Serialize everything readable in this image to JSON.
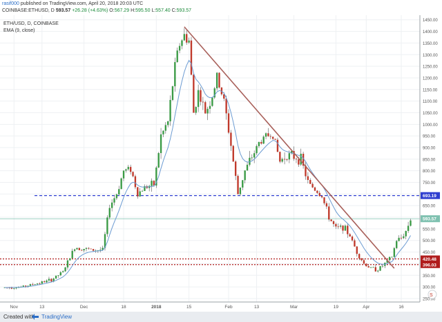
{
  "header": {
    "publisher": "rasif000",
    "published_text": "published on TradingView.com, April 20, 2018 20:03 UTC",
    "symbol": "COINBASE:ETHUSD",
    "interval": "D",
    "last": "593.57",
    "change": "+26.28 (+4.63%)",
    "o_label": "O:",
    "o": "567.29",
    "h_label": "H:",
    "h": "595.50",
    "l_label": "L:",
    "l": "557.40",
    "c_label": "C:",
    "c": "593.57"
  },
  "legend": {
    "symbol_line": "ETH/USD, D, COINBASE",
    "indicator": "EMA (9, close)"
  },
  "footer": {
    "created_with": "Created with",
    "brand": "TradingView"
  },
  "colors": {
    "up": "#3a9a45",
    "down": "#c0392b",
    "ema": "#6b9bd2",
    "trendline": "#a8605a",
    "resistance": "#2f3fd0",
    "support": "#b01c1c",
    "last_price_line": "#7fc1b0"
  },
  "chart_data": {
    "type": "candlestick",
    "title": "ETH/USD, D, COINBASE",
    "x_ticks": [
      "Nov",
      "13",
      "Dec",
      "18",
      "2018",
      "15",
      "Feb",
      "13",
      "Mar",
      "19",
      "Apr",
      "16"
    ],
    "y_ticks": [
      "1450.00",
      "1400.00",
      "1350.00",
      "1300.00",
      "1250.00",
      "1200.00",
      "1150.00",
      "1100.00",
      "1050.00",
      "1000.00",
      "950.00",
      "900.00",
      "850.00",
      "800.00",
      "750.00",
      "700.00",
      "650.00",
      "600.00",
      "550.00",
      "500.00",
      "450.00",
      "400.00",
      "350.00",
      "300.00",
      "250.00"
    ],
    "ylim": [
      235,
      1470
    ],
    "price_labels": [
      {
        "value": 693.19,
        "text": "693.19",
        "kind": "resistance"
      },
      {
        "value": 593.57,
        "text": "593.57",
        "kind": "last"
      },
      {
        "value": 420.48,
        "text": "420.48",
        "kind": "support"
      },
      {
        "value": 396.03,
        "text": "396.03",
        "kind": "support"
      }
    ],
    "trendline": {
      "start_date": "2018-01-13",
      "start_value": 1420,
      "end_date": "2018-04-13",
      "end_value": 380
    },
    "series_close": [
      {
        "date": "2017-10-28",
        "value": 297
      },
      {
        "date": "2017-11-04",
        "value": 300
      },
      {
        "date": "2017-11-11",
        "value": 315
      },
      {
        "date": "2017-11-17",
        "value": 330
      },
      {
        "date": "2017-11-22",
        "value": 365
      },
      {
        "date": "2017-11-27",
        "value": 470
      },
      {
        "date": "2017-12-01",
        "value": 465
      },
      {
        "date": "2017-12-05",
        "value": 458
      },
      {
        "date": "2017-12-09",
        "value": 460
      },
      {
        "date": "2017-12-12",
        "value": 650
      },
      {
        "date": "2017-12-15",
        "value": 700
      },
      {
        "date": "2017-12-18",
        "value": 800
      },
      {
        "date": "2017-12-21",
        "value": 810
      },
      {
        "date": "2017-12-24",
        "value": 700
      },
      {
        "date": "2017-12-27",
        "value": 730
      },
      {
        "date": "2017-12-31",
        "value": 740
      },
      {
        "date": "2018-01-03",
        "value": 950
      },
      {
        "date": "2018-01-06",
        "value": 1010
      },
      {
        "date": "2018-01-09",
        "value": 1250
      },
      {
        "date": "2018-01-11",
        "value": 1350
      },
      {
        "date": "2018-01-13",
        "value": 1380
      },
      {
        "date": "2018-01-15",
        "value": 1360
      },
      {
        "date": "2018-01-17",
        "value": 1050
      },
      {
        "date": "2018-01-19",
        "value": 1140
      },
      {
        "date": "2018-01-22",
        "value": 1050
      },
      {
        "date": "2018-01-25",
        "value": 1120
      },
      {
        "date": "2018-01-27",
        "value": 1200
      },
      {
        "date": "2018-01-30",
        "value": 1100
      },
      {
        "date": "2018-02-02",
        "value": 910
      },
      {
        "date": "2018-02-05",
        "value": 700
      },
      {
        "date": "2018-02-08",
        "value": 800
      },
      {
        "date": "2018-02-11",
        "value": 860
      },
      {
        "date": "2018-02-14",
        "value": 920
      },
      {
        "date": "2018-02-17",
        "value": 950
      },
      {
        "date": "2018-02-20",
        "value": 960
      },
      {
        "date": "2018-02-23",
        "value": 840
      },
      {
        "date": "2018-02-26",
        "value": 870
      },
      {
        "date": "2018-03-01",
        "value": 860
      },
      {
        "date": "2018-03-04",
        "value": 850
      },
      {
        "date": "2018-03-07",
        "value": 750
      },
      {
        "date": "2018-03-10",
        "value": 720
      },
      {
        "date": "2018-03-13",
        "value": 690
      },
      {
        "date": "2018-03-16",
        "value": 600
      },
      {
        "date": "2018-03-19",
        "value": 550
      },
      {
        "date": "2018-03-22",
        "value": 560
      },
      {
        "date": "2018-03-25",
        "value": 520
      },
      {
        "date": "2018-03-28",
        "value": 450
      },
      {
        "date": "2018-03-31",
        "value": 400
      },
      {
        "date": "2018-04-03",
        "value": 380
      },
      {
        "date": "2018-04-06",
        "value": 375
      },
      {
        "date": "2018-04-09",
        "value": 400
      },
      {
        "date": "2018-04-12",
        "value": 430
      },
      {
        "date": "2018-04-14",
        "value": 500
      },
      {
        "date": "2018-04-16",
        "value": 510
      },
      {
        "date": "2018-04-18",
        "value": 540
      },
      {
        "date": "2018-04-20",
        "value": 593
      }
    ]
  }
}
